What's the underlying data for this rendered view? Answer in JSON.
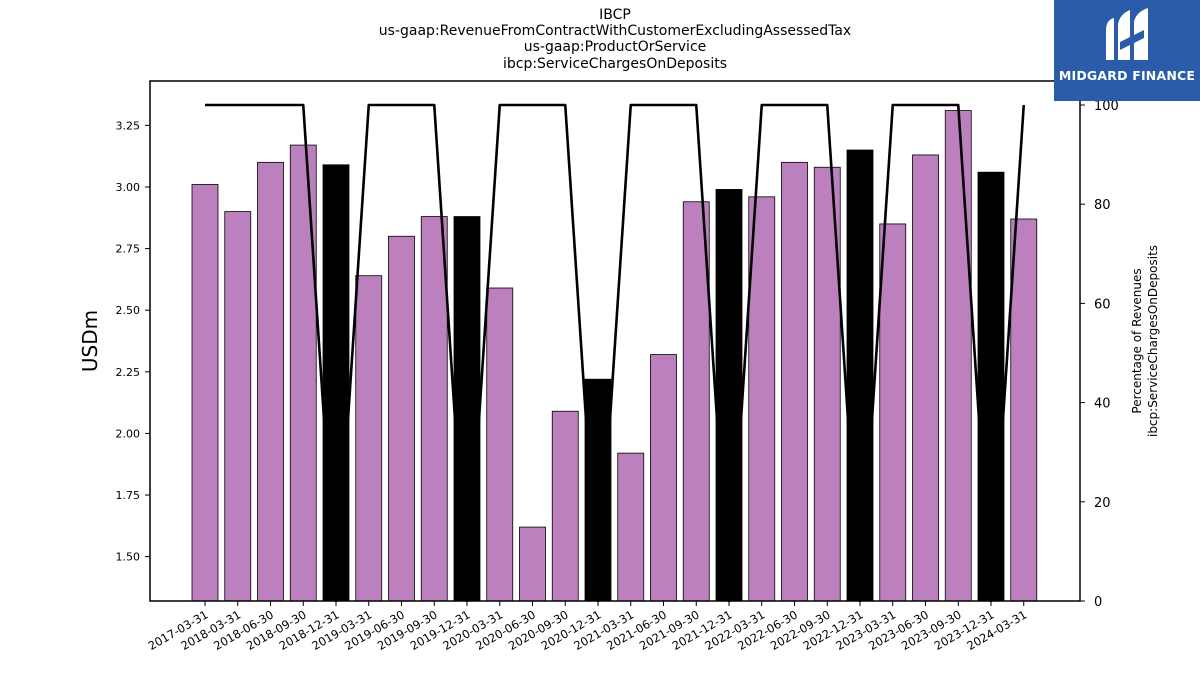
{
  "title_lines": [
    "IBCP",
    "us-gaap:RevenueFromContractWithCustomerExcludingAssessedTax",
    "us-gaap:ProductOrService",
    "ibcp:ServiceChargesOnDeposits"
  ],
  "logo": {
    "text": "MIDGARD FINANCE",
    "icon": "midgard-logo-mark",
    "background": "#2a5caa"
  },
  "chart_data": {
    "type": "bar",
    "categories": [
      "2017-03-31",
      "2018-03-31",
      "2018-06-30",
      "2018-09-30",
      "2018-12-31",
      "2019-03-31",
      "2019-06-30",
      "2019-09-30",
      "2019-12-31",
      "2020-03-31",
      "2020-06-30",
      "2020-09-30",
      "2020-12-31",
      "2021-03-31",
      "2021-06-30",
      "2021-09-30",
      "2021-12-31",
      "2022-03-31",
      "2022-06-30",
      "2022-09-30",
      "2022-12-31",
      "2023-03-31",
      "2023-06-30",
      "2023-09-30",
      "2023-12-31",
      "2024-03-31"
    ],
    "values": [
      3.01,
      2.9,
      3.1,
      3.17,
      3.09,
      2.64,
      2.8,
      2.88,
      2.88,
      2.59,
      1.62,
      2.09,
      2.22,
      1.92,
      2.32,
      2.94,
      2.99,
      2.96,
      3.1,
      3.08,
      3.15,
      2.85,
      3.13,
      3.31,
      3.06,
      2.87
    ],
    "highlight": [
      false,
      false,
      false,
      false,
      true,
      false,
      false,
      false,
      true,
      false,
      false,
      false,
      true,
      false,
      false,
      false,
      true,
      false,
      false,
      false,
      true,
      false,
      false,
      false,
      true,
      false
    ],
    "bar_color": "#bb80bd",
    "highlight_color": "#000000",
    "ylabel": "USDm",
    "ylim": [
      1.32,
      3.43
    ],
    "yticks": [
      "1.50",
      "1.75",
      "2.00",
      "2.25",
      "2.50",
      "2.75",
      "3.00",
      "3.25"
    ],
    "secondary": {
      "type": "line",
      "ylabel_lines": [
        "Percentage of Revenues",
        "ibcp:ServiceChargesOnDeposits"
      ],
      "values": [
        100,
        100,
        100,
        100,
        0,
        100,
        100,
        100,
        0,
        100,
        100,
        100,
        0,
        100,
        100,
        100,
        0,
        100,
        100,
        100,
        0,
        100,
        100,
        100,
        0,
        100
      ],
      "ylim": [
        0,
        100
      ],
      "yticks": [
        "0",
        "20",
        "40",
        "60",
        "80",
        "100"
      ],
      "color": "#000000"
    },
    "grid": false
  }
}
